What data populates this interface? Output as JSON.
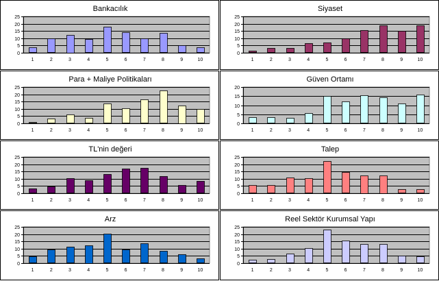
{
  "chart_data": [
    {
      "type": "bar",
      "title": "Bankacılık",
      "categories": [
        "1",
        "2",
        "3",
        "4",
        "5",
        "6",
        "7",
        "8",
        "9",
        "10"
      ],
      "values": [
        4,
        10,
        12.5,
        9.5,
        18,
        14,
        10,
        13.5,
        5,
        4
      ],
      "ylim": [
        0,
        25
      ],
      "yticks": [
        0,
        5,
        10,
        15,
        20,
        25
      ],
      "color": "#9999ff",
      "grid": true
    },
    {
      "type": "bar",
      "title": "Siyaset",
      "categories": [
        "1",
        "2",
        "3",
        "4",
        "5",
        "6",
        "7",
        "8",
        "9",
        "10"
      ],
      "values": [
        1.5,
        3.5,
        3.5,
        6.5,
        7,
        10,
        15.5,
        19,
        15,
        19
      ],
      "ylim": [
        0,
        25
      ],
      "yticks": [
        0,
        5,
        10,
        15,
        20,
        25
      ],
      "color": "#993366",
      "grid": true
    },
    {
      "type": "bar",
      "title": "Para + Maliye Politikaları",
      "categories": [
        "1",
        "2",
        "3",
        "4",
        "5",
        "6",
        "7",
        "8",
        "9",
        "10"
      ],
      "values": [
        1,
        3.5,
        6,
        4,
        13.5,
        10.5,
        16.5,
        22.5,
        12.5,
        10
      ],
      "ylim": [
        0,
        25
      ],
      "yticks": [
        0,
        5,
        10,
        15,
        20,
        25
      ],
      "color": "#ffffcc",
      "grid": true
    },
    {
      "type": "bar",
      "title": "Güven Ortamı",
      "categories": [
        "1",
        "2",
        "3",
        "4",
        "5",
        "6",
        "7",
        "8",
        "9",
        "10"
      ],
      "values": [
        3.5,
        3.5,
        3,
        5.5,
        15,
        12,
        15.5,
        14.5,
        11,
        16
      ],
      "ylim": [
        0,
        20
      ],
      "yticks": [
        0,
        5,
        10,
        15,
        20
      ],
      "color": "#ccffff",
      "grid": true
    },
    {
      "type": "bar",
      "title": "TL'nin değeri",
      "categories": [
        "1",
        "2",
        "3",
        "4",
        "5",
        "6",
        "7",
        "8",
        "9",
        "10"
      ],
      "values": [
        3.5,
        4.5,
        10.5,
        9,
        13,
        17,
        17.5,
        12,
        5.5,
        8.5
      ],
      "ylim": [
        0,
        25
      ],
      "yticks": [
        0,
        5,
        10,
        15,
        20,
        25
      ],
      "color": "#660066",
      "grid": true
    },
    {
      "type": "bar",
      "title": "Talep",
      "categories": [
        "1",
        "2",
        "3",
        "4",
        "5",
        "6",
        "7",
        "8",
        "9",
        "10"
      ],
      "values": [
        5.5,
        5.5,
        11,
        10.5,
        22,
        14.5,
        12.5,
        12.5,
        3,
        3
      ],
      "ylim": [
        0,
        25
      ],
      "yticks": [
        0,
        5,
        10,
        15,
        20,
        25
      ],
      "color": "#ff8080",
      "grid": true
    },
    {
      "type": "bar",
      "title": "Arz",
      "categories": [
        "1",
        "2",
        "3",
        "4",
        "5",
        "6",
        "7",
        "8",
        "9",
        "10"
      ],
      "values": [
        4.5,
        9.5,
        11.5,
        12.5,
        20.5,
        9.5,
        13.5,
        8.5,
        6,
        3.5
      ],
      "ylim": [
        0,
        25
      ],
      "yticks": [
        0,
        5,
        10,
        15,
        20,
        25
      ],
      "color": "#0066cc",
      "grid": true
    },
    {
      "type": "bar",
      "title": "Reel Sektör Kurumsal Yapı",
      "categories": [
        "1",
        "2",
        "3",
        "4",
        "5",
        "6",
        "7",
        "8",
        "9",
        "10"
      ],
      "values": [
        2.5,
        3,
        6.5,
        10.5,
        23,
        15.5,
        13,
        13,
        5,
        4.5
      ],
      "ylim": [
        0,
        25
      ],
      "yticks": [
        0,
        5,
        10,
        15,
        20,
        25
      ],
      "color": "#ccccff",
      "grid": true
    }
  ]
}
